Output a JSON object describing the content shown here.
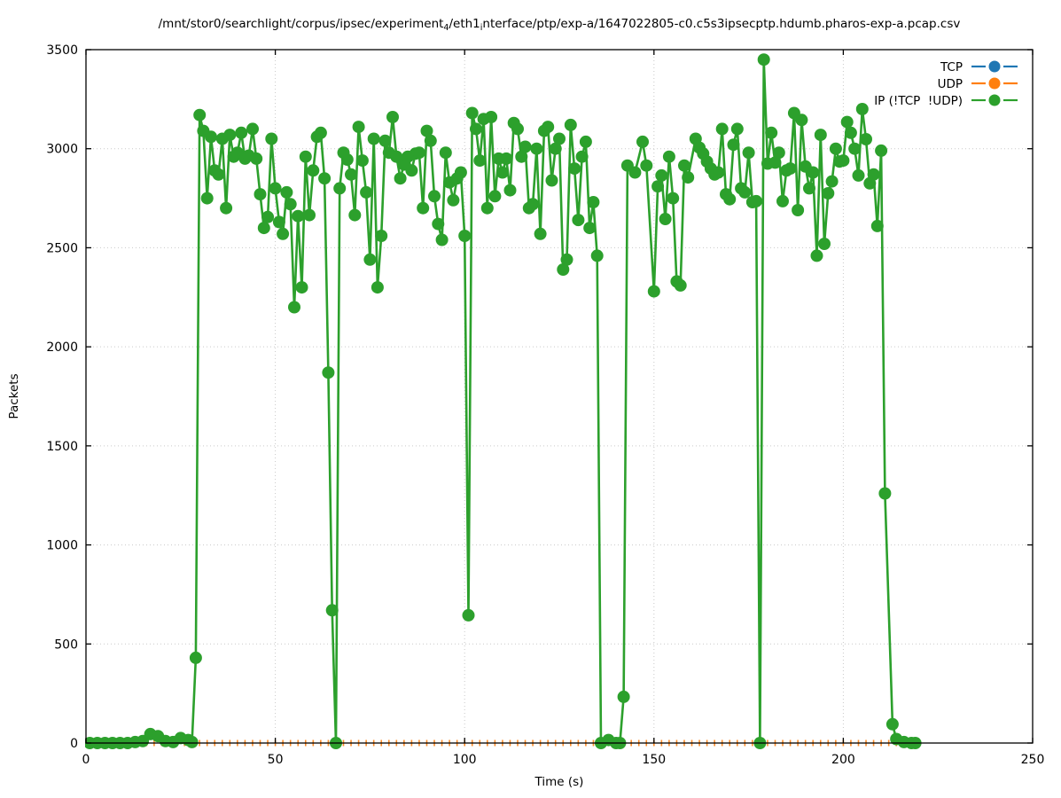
{
  "window": {
    "background": "#ffffff",
    "plot_frame_color": "#000000",
    "grid_color": "#c9c9c9"
  },
  "title": {
    "parts": [
      {
        "text": "/mnt/stor0/searchlight/corpus/ipsec/experiment"
      },
      {
        "sub": "4"
      },
      {
        "text": "/eth1"
      },
      {
        "sub": "i"
      },
      {
        "text": "nterface/ptp/exp-a/1647022805-c0.c5s3ipsecptp.hdumb.pharos-exp-a.pcap.csv"
      }
    ]
  },
  "axes": {
    "x": {
      "label": "Time (s)",
      "min": 0,
      "max": 250,
      "ticks": [
        0,
        50,
        100,
        150,
        200,
        250
      ]
    },
    "y": {
      "label": "Packets",
      "min": 0,
      "max": 3500,
      "ticks": [
        0,
        500,
        1000,
        1500,
        2000,
        2500,
        3000,
        3500
      ]
    }
  },
  "legend": {
    "position": "top-right",
    "items": [
      {
        "label": "TCP",
        "color": "#1f77b4"
      },
      {
        "label": "UDP",
        "color": "#ff7f0e"
      },
      {
        "label": "IP (!TCP  !UDP)",
        "color": "#2ca02c"
      }
    ]
  },
  "chart_data": {
    "type": "line",
    "title": "/mnt/stor0/searchlight/corpus/ipsec/experiment_4/eth1_interface/ptp/exp-a/1647022805-c0.c5s3ipsecptp.hdumb.pharos-exp-a.pcap.csv",
    "xlabel": "Time (s)",
    "ylabel": "Packets",
    "xlim": [
      0,
      250
    ],
    "ylim": [
      0,
      3500
    ],
    "grid": "dotted",
    "legend_position": "top-right",
    "series": [
      {
        "name": "TCP",
        "color": "#1f77b4",
        "marker": "circle",
        "points": [],
        "visible_in_plot": false
      },
      {
        "name": "UDP",
        "color": "#ff7f0e",
        "marker": "vertical-dash",
        "y_constant": 0,
        "x_start": 0,
        "x_end": 219,
        "x_step": 2
      },
      {
        "name": "IP (!TCP  !UDP)",
        "color": "#2ca02c",
        "marker": "circle",
        "points": [
          [
            1,
            0
          ],
          [
            3,
            0
          ],
          [
            5,
            0
          ],
          [
            7,
            0
          ],
          [
            9,
            0
          ],
          [
            11,
            0
          ],
          [
            13,
            5
          ],
          [
            15,
            10
          ],
          [
            17,
            45
          ],
          [
            19,
            35
          ],
          [
            21,
            10
          ],
          [
            23,
            5
          ],
          [
            25,
            25
          ],
          [
            27,
            15
          ],
          [
            28,
            5
          ],
          [
            29,
            430
          ],
          [
            30,
            3170
          ],
          [
            31,
            3090
          ],
          [
            32,
            2750
          ],
          [
            33,
            3060
          ],
          [
            34,
            2890
          ],
          [
            35,
            2870
          ],
          [
            36,
            3050
          ],
          [
            37,
            2700
          ],
          [
            38,
            3070
          ],
          [
            39,
            2960
          ],
          [
            40,
            2980
          ],
          [
            41,
            3080
          ],
          [
            42,
            2950
          ],
          [
            43,
            2965
          ],
          [
            44,
            3100
          ],
          [
            45,
            2950
          ],
          [
            46,
            2770
          ],
          [
            47,
            2600
          ],
          [
            48,
            2655
          ],
          [
            49,
            3050
          ],
          [
            50,
            2800
          ],
          [
            51,
            2630
          ],
          [
            52,
            2570
          ],
          [
            53,
            2780
          ],
          [
            54,
            2720
          ],
          [
            55,
            2200
          ],
          [
            56,
            2660
          ],
          [
            57,
            2300
          ],
          [
            58,
            2960
          ],
          [
            59,
            2665
          ],
          [
            60,
            2890
          ],
          [
            61,
            3060
          ],
          [
            62,
            3080
          ],
          [
            63,
            2850
          ],
          [
            64,
            1870
          ],
          [
            65,
            670
          ],
          [
            66,
            0
          ],
          [
            67,
            2800
          ],
          [
            68,
            2980
          ],
          [
            69,
            2945
          ],
          [
            70,
            2870
          ],
          [
            71,
            2665
          ],
          [
            72,
            3110
          ],
          [
            73,
            2940
          ],
          [
            74,
            2780
          ],
          [
            75,
            2440
          ],
          [
            76,
            3050
          ],
          [
            77,
            2300
          ],
          [
            78,
            2560
          ],
          [
            79,
            3040
          ],
          [
            80,
            2980
          ],
          [
            81,
            3160
          ],
          [
            82,
            2960
          ],
          [
            83,
            2850
          ],
          [
            84,
            2920
          ],
          [
            85,
            2960
          ],
          [
            86,
            2890
          ],
          [
            87,
            2975
          ],
          [
            88,
            2980
          ],
          [
            89,
            2700
          ],
          [
            90,
            3090
          ],
          [
            91,
            3040
          ],
          [
            92,
            2760
          ],
          [
            93,
            2620
          ],
          [
            94,
            2540
          ],
          [
            95,
            2980
          ],
          [
            96,
            2830
          ],
          [
            97,
            2740
          ],
          [
            98,
            2850
          ],
          [
            99,
            2880
          ],
          [
            100,
            2560
          ],
          [
            101,
            645
          ],
          [
            102,
            3180
          ],
          [
            103,
            3100
          ],
          [
            104,
            2940
          ],
          [
            105,
            3150
          ],
          [
            106,
            2700
          ],
          [
            107,
            3160
          ],
          [
            108,
            2760
          ],
          [
            109,
            2950
          ],
          [
            110,
            2880
          ],
          [
            111,
            2950
          ],
          [
            112,
            2790
          ],
          [
            113,
            3130
          ],
          [
            114,
            3100
          ],
          [
            115,
            2960
          ],
          [
            116,
            3010
          ],
          [
            117,
            2700
          ],
          [
            118,
            2720
          ],
          [
            119,
            3000
          ],
          [
            120,
            2570
          ],
          [
            121,
            3090
          ],
          [
            122,
            3110
          ],
          [
            123,
            2840
          ],
          [
            124,
            3000
          ],
          [
            125,
            3050
          ],
          [
            126,
            2390
          ],
          [
            127,
            2440
          ],
          [
            128,
            3120
          ],
          [
            129,
            2900
          ],
          [
            130,
            2640
          ],
          [
            131,
            2960
          ],
          [
            132,
            3035
          ],
          [
            133,
            2600
          ],
          [
            134,
            2730
          ],
          [
            135,
            2460
          ],
          [
            136,
            0
          ],
          [
            138,
            15
          ],
          [
            140,
            0
          ],
          [
            141,
            0
          ],
          [
            142,
            233
          ],
          [
            143,
            2915
          ],
          [
            145,
            2880
          ],
          [
            147,
            3035
          ],
          [
            148,
            2915
          ],
          [
            150,
            2280
          ],
          [
            151,
            2810
          ],
          [
            152,
            2865
          ],
          [
            153,
            2645
          ],
          [
            154,
            2960
          ],
          [
            155,
            2750
          ],
          [
            156,
            2330
          ],
          [
            157,
            2310
          ],
          [
            158,
            2915
          ],
          [
            159,
            2855
          ],
          [
            161,
            3050
          ],
          [
            162,
            3005
          ],
          [
            163,
            2975
          ],
          [
            164,
            2935
          ],
          [
            165,
            2900
          ],
          [
            166,
            2870
          ],
          [
            167,
            2880
          ],
          [
            168,
            3100
          ],
          [
            169,
            2770
          ],
          [
            170,
            2745
          ],
          [
            171,
            3020
          ],
          [
            172,
            3100
          ],
          [
            173,
            2800
          ],
          [
            174,
            2780
          ],
          [
            175,
            2980
          ],
          [
            176,
            2730
          ],
          [
            177,
            2735
          ],
          [
            178,
            0
          ],
          [
            179,
            3450
          ],
          [
            180,
            2925
          ],
          [
            181,
            3080
          ],
          [
            182,
            2930
          ],
          [
            183,
            2980
          ],
          [
            184,
            2735
          ],
          [
            185,
            2890
          ],
          [
            186,
            2900
          ],
          [
            187,
            3180
          ],
          [
            188,
            2690
          ],
          [
            189,
            3145
          ],
          [
            190,
            2910
          ],
          [
            191,
            2800
          ],
          [
            192,
            2880
          ],
          [
            193,
            2460
          ],
          [
            194,
            3070
          ],
          [
            195,
            2520
          ],
          [
            196,
            2775
          ],
          [
            197,
            2835
          ],
          [
            198,
            3000
          ],
          [
            199,
            2935
          ],
          [
            200,
            2940
          ],
          [
            201,
            3135
          ],
          [
            202,
            3080
          ],
          [
            203,
            3000
          ],
          [
            204,
            2865
          ],
          [
            205,
            3200
          ],
          [
            206,
            3048
          ],
          [
            207,
            2825
          ],
          [
            208,
            2870
          ],
          [
            209,
            2610
          ],
          [
            210,
            2990
          ],
          [
            211,
            1260
          ],
          [
            213,
            95
          ],
          [
            214,
            20
          ],
          [
            216,
            5
          ],
          [
            218,
            0
          ],
          [
            219,
            0
          ]
        ]
      }
    ]
  }
}
